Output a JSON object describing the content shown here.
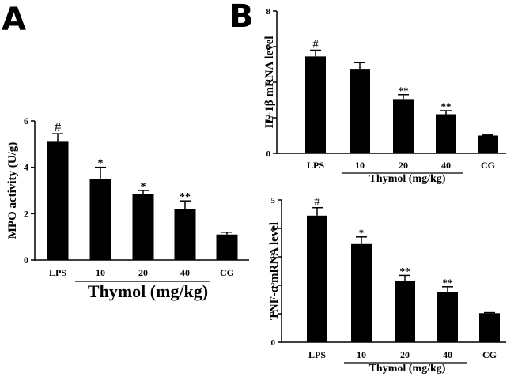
{
  "panels": {
    "A": {
      "letter": "A"
    },
    "B": {
      "letter": "B"
    }
  },
  "chart_data": [
    {
      "id": "mpo",
      "type": "bar",
      "categories": [
        "LPS",
        "10",
        "20",
        "40",
        "CG"
      ],
      "values": [
        5.1,
        3.5,
        2.85,
        2.2,
        1.1
      ],
      "errors": [
        0.35,
        0.5,
        0.15,
        0.35,
        0.1
      ],
      "markers": [
        "#",
        "*",
        "*",
        "**",
        ""
      ],
      "ylabel": "MPO activity (U/g)",
      "xgroup_label": "Thymol (mg/kg)",
      "ylim": [
        0,
        6
      ],
      "yticks": [
        0,
        2,
        4,
        6
      ],
      "colors": {
        "bar": "#000000"
      }
    },
    {
      "id": "il1b",
      "type": "bar",
      "categories": [
        "LPS",
        "10",
        "20",
        "40",
        "CG"
      ],
      "values": [
        5.45,
        4.75,
        3.05,
        2.2,
        1.0
      ],
      "errors": [
        0.35,
        0.35,
        0.25,
        0.2,
        0.03
      ],
      "markers": [
        "#",
        "",
        "**",
        "**",
        ""
      ],
      "ylabel": "IL-1β  mRNA level",
      "xgroup_label": "Thymol (mg/kg)",
      "ylim": [
        0,
        8
      ],
      "yticks": [
        0,
        2,
        4,
        6,
        8
      ],
      "colors": {
        "bar": "#000000"
      }
    },
    {
      "id": "tnfa",
      "type": "bar",
      "categories": [
        "LPS",
        "10",
        "20",
        "40",
        "CG"
      ],
      "values": [
        4.45,
        3.45,
        2.15,
        1.75,
        1.02
      ],
      "errors": [
        0.28,
        0.25,
        0.2,
        0.2,
        0.02
      ],
      "markers": [
        "#",
        "*",
        "**",
        "**",
        ""
      ],
      "ylabel": "TNF-α  mRNA level",
      "xgroup_label": "Thymol (mg/kg)",
      "ylim": [
        0,
        5
      ],
      "yticks": [
        0,
        1,
        2,
        3,
        4,
        5
      ],
      "colors": {
        "bar": "#000000"
      }
    }
  ]
}
